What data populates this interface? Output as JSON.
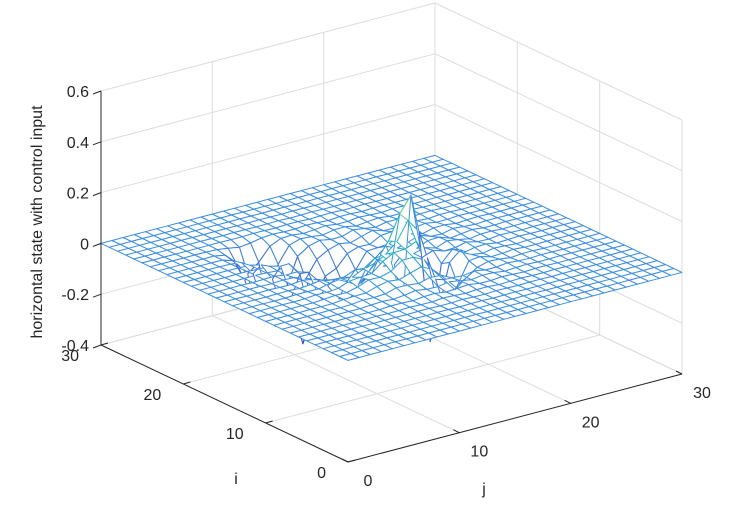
{
  "chart_data": {
    "type": "surface",
    "title": "",
    "xlabel": "j",
    "ylabel": "i",
    "zlabel": "horizontal state with control input",
    "xlim": [
      0,
      30
    ],
    "ylim": [
      0,
      30
    ],
    "zlim": [
      -0.4,
      0.6
    ],
    "xticks": [
      "0",
      "10",
      "20",
      "30"
    ],
    "yticks": [
      "0",
      "10",
      "20",
      "30"
    ],
    "zticks": [
      "-0.4",
      "-0.2",
      "0",
      "0.2",
      "0.4",
      "0.6"
    ],
    "grid": true,
    "colormap": "parula",
    "mesh_resolution": 30,
    "notable_points": [
      {
        "i": 14,
        "j": 16,
        "z": 0.27
      },
      {
        "i": 13,
        "j": 15,
        "z": 0.17
      },
      {
        "i": 12,
        "j": 14,
        "z": 0.08
      },
      {
        "i": 13,
        "j": 17,
        "z": -0.38
      },
      {
        "i": 15,
        "j": 16,
        "z": -0.32
      },
      {
        "i": 19,
        "j": 10,
        "z": -0.36
      },
      {
        "i": 20,
        "j": 9,
        "z": -0.25
      },
      {
        "i": 22,
        "j": 8,
        "z": -0.2
      },
      {
        "i": 17,
        "j": 13,
        "z": -0.3
      },
      {
        "i": 11,
        "j": 17,
        "z": -0.2
      },
      {
        "i": 0,
        "j": 0,
        "z": 0.0
      },
      {
        "i": 30,
        "j": 30,
        "z": 0.0
      }
    ]
  },
  "colors": {
    "mesh_low": "#3e26a8",
    "mesh_flat": "#3d8ee0",
    "mesh_mid": "#21c0b3",
    "mesh_high": "#f4dd30",
    "axis": "#262626",
    "grid": "#dcdcdc"
  }
}
